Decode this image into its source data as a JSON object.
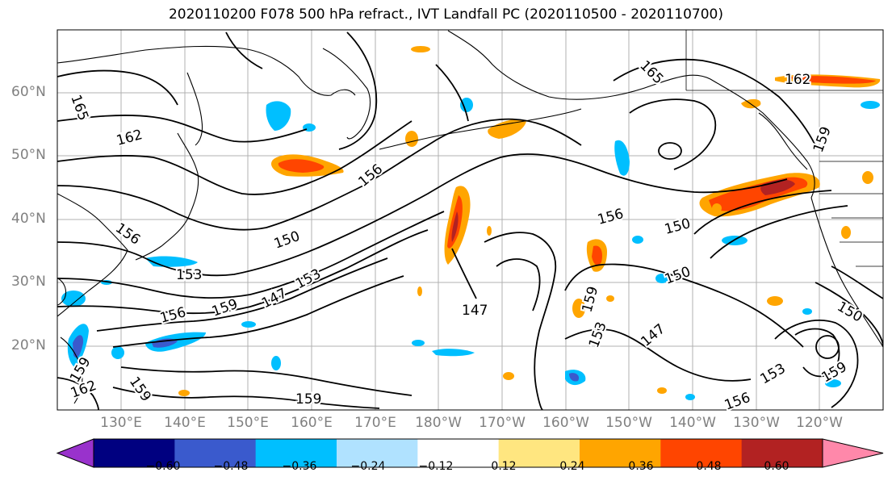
{
  "title": "2020110200 F078 500 hPa refract., IVT Landfall PC (2020110500 - 2020110700)",
  "lat_labels": [
    "60°N",
    "50°N",
    "40°N",
    "30°N",
    "20°N"
  ],
  "lon_labels": [
    "130°E",
    "140°E",
    "150°E",
    "160°E",
    "170°E",
    "180°W",
    "170°W",
    "160°W",
    "150°W",
    "140°W",
    "130°W",
    "120°W"
  ],
  "contour_labels": [
    "165",
    "162",
    "156",
    "156",
    "150",
    "153",
    "147",
    "153",
    "156",
    "159",
    "150",
    "147",
    "159",
    "153",
    "147",
    "150",
    "156",
    "159",
    "162",
    "165",
    "159",
    "159",
    "150",
    "153",
    "159",
    "162",
    "159",
    "156",
    "159",
    "153",
    "156",
    "162"
  ],
  "colorbar": {
    "ticks": [
      "−0.60",
      "−0.48",
      "−0.36",
      "−0.24",
      "−0.12",
      "0.12",
      "0.24",
      "0.36",
      "0.48",
      "0.60"
    ],
    "colors": [
      "#9932cc",
      "#000080",
      "#3a5acd",
      "#00bfff",
      "#b0e2ff",
      "#ffffff",
      "#ffe680",
      "#ffa500",
      "#ff4500",
      "#b22222",
      "#ff88aa"
    ]
  },
  "map_colors": {
    "land_border": "#000000",
    "gridline": "#b0b0b0",
    "axis_label": "#808080"
  }
}
